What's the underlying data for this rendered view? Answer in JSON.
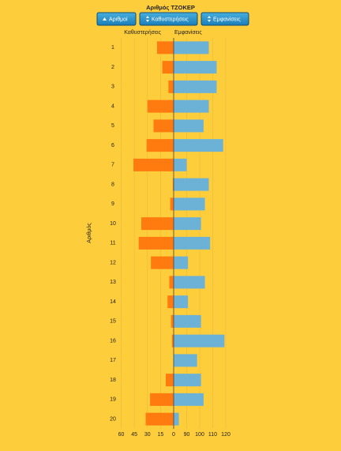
{
  "chart_data": {
    "type": "butterfly_bar",
    "title": "Αριθμός ΤΖΟΚΕΡ",
    "buttons": [
      "Αριθμοί",
      "Καθυστερήσεις",
      "Εμφανίσεις"
    ],
    "y_label": "Αριθμός",
    "categories": [
      "1",
      "2",
      "3",
      "4",
      "5",
      "6",
      "7",
      "8",
      "9",
      "10",
      "11",
      "12",
      "13",
      "14",
      "15",
      "16",
      "17",
      "18",
      "19",
      "20"
    ],
    "series": [
      {
        "name": "Καθυστερήσεις",
        "color": "#ff7a0f",
        "axis": "x",
        "values": [
          19,
          13,
          6,
          30,
          23,
          31,
          46,
          1,
          4,
          37,
          40,
          26,
          5,
          7,
          3,
          2,
          0,
          9,
          27,
          32
        ]
      },
      {
        "name": "Εμφανίσεις",
        "color": "#6cb2d6",
        "axis": "x2",
        "values": [
          107,
          113,
          113,
          107,
          103,
          118,
          90,
          107,
          104,
          101,
          108,
          91,
          104,
          91,
          101,
          119,
          98,
          101,
          103,
          84
        ]
      }
    ],
    "xlim": [
      0,
      65
    ],
    "x_reversed": true,
    "xticks": [
      60,
      45,
      30,
      15,
      0
    ],
    "x2lim": [
      80,
      122
    ],
    "x2ticks": [
      90,
      100,
      110,
      120
    ],
    "grid": true
  }
}
